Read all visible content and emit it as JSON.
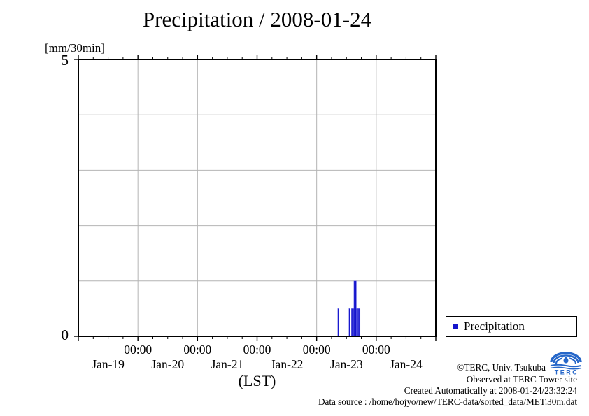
{
  "title": "Precipitation / 2008-01-24",
  "y_axis": {
    "unit_label": "[mm/30min]",
    "max_label": "5",
    "min_label": "0",
    "min": 0,
    "max": 5
  },
  "x_axis": {
    "time_labels": [
      "00:00",
      "00:00",
      "00:00",
      "00:00",
      "00:00"
    ],
    "day_labels": [
      "Jan-19",
      "Jan-20",
      "Jan-21",
      "Jan-22",
      "Jan-23",
      "Jan-24"
    ],
    "axis_label": "(LST)"
  },
  "legend": {
    "label": "Precipitation",
    "marker_color": "#1414cc"
  },
  "footer": {
    "copyright": "©TERC, Univ. Tsukuba",
    "observed": "Observed at TERC Tower site",
    "created": "Created Automatically at 2008-01-24/23:32:24",
    "datasource": "Data source : /home/hojyo/new/TERC-data/sorted_data/MET.30m.dat",
    "logo_text": "TERC",
    "logo_color": "#2667c9"
  },
  "chart_data": {
    "type": "bar",
    "title": "Precipitation / 2008-01-24",
    "ylabel": "[mm/30min]",
    "xlabel": "(LST)",
    "ylim": [
      0,
      5
    ],
    "y_gridlines": [
      1,
      2,
      3,
      4
    ],
    "x_start": "2008-01-19 00:00 LST",
    "x_end": "2008-01-25 00:00 LST",
    "x_range_hours": [
      0,
      144
    ],
    "x_gridlines_hours": [
      24,
      48,
      72,
      96,
      120
    ],
    "major_tick_hours": 24,
    "minor_tick_hours": 6,
    "bar_width_hours": 0.5,
    "bar_color": "#1414cc",
    "bar_edge_color": "#6a6ae8",
    "grid_color": "#b4b4b4",
    "grid": true,
    "legend_position": "outside-bottom-right",
    "series": [
      {
        "name": "Precipitation",
        "points": [
          {
            "time": "Jan-23 08:30",
            "hours_from_start": 104.5,
            "value": 0.5
          },
          {
            "time": "Jan-23 13:00",
            "hours_from_start": 109.0,
            "value": 0.5
          },
          {
            "time": "Jan-23 14:00",
            "hours_from_start": 110.0,
            "value": 0.5
          },
          {
            "time": "Jan-23 14:30",
            "hours_from_start": 110.5,
            "value": 0.5
          },
          {
            "time": "Jan-23 15:00",
            "hours_from_start": 111.0,
            "value": 1.0
          },
          {
            "time": "Jan-23 15:30",
            "hours_from_start": 111.5,
            "value": 1.0
          },
          {
            "time": "Jan-23 16:00",
            "hours_from_start": 112.0,
            "value": 0.5
          },
          {
            "time": "Jan-23 16:30",
            "hours_from_start": 112.5,
            "value": 0.5
          },
          {
            "time": "Jan-23 17:00",
            "hours_from_start": 113.0,
            "value": 0.5
          }
        ]
      }
    ]
  }
}
